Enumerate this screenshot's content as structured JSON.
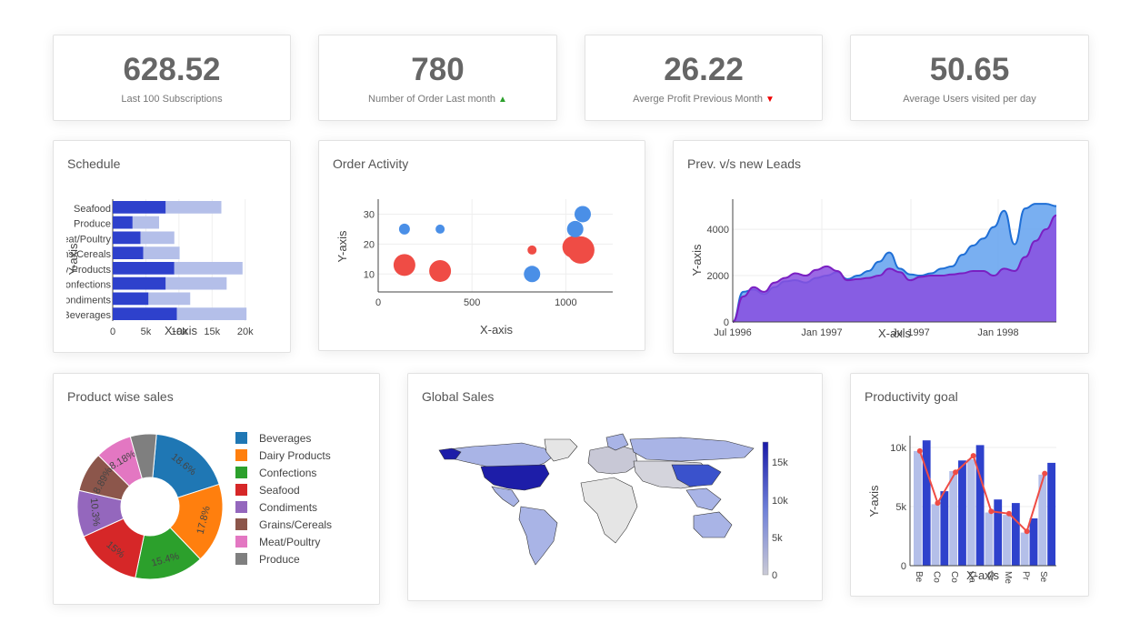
{
  "kpis": [
    {
      "value": "628.52",
      "label": "Last 100 Subscriptions",
      "trend": ""
    },
    {
      "value": "780",
      "label": "Number of Order Last month",
      "trend": "up"
    },
    {
      "value": "26.22",
      "label": "Averge Profit Previous Month",
      "trend": "down"
    },
    {
      "value": "50.65",
      "label": "Average Users visited per day",
      "trend": ""
    }
  ],
  "colors": {
    "up": "#2ca02c",
    "down": "#d62728",
    "bar_dark": "#2e41cc",
    "bar_light": "#b4bfe9",
    "red": "#ef4c45",
    "blue": "#4a8fe7",
    "area_blue": "#6aa6f0",
    "area_purple": "#8a4fe0"
  },
  "schedule": {
    "title": "Schedule",
    "chart_data": {
      "type": "bar",
      "orientation": "horizontal",
      "stacked": true,
      "categories": [
        "Seafood",
        "Produce",
        "Meat/Poultry",
        "Grains/Cereals",
        "Dairy Products",
        "Confections",
        "Condiments",
        "Beverages"
      ],
      "series": [
        {
          "values": [
            8000,
            3000,
            4200,
            4600,
            9300,
            8000,
            5400,
            9700
          ]
        },
        {
          "values": [
            8400,
            4000,
            5100,
            5500,
            10300,
            9200,
            6300,
            10500
          ]
        }
      ],
      "xlabel": "X-axis",
      "ylabel": "Y-axis",
      "xticks": [
        "0",
        "5k",
        "10k",
        "15k",
        "20k"
      ],
      "xlim": [
        0,
        21000
      ]
    }
  },
  "order_activity": {
    "title": "Order Activity",
    "chart_data": {
      "type": "scatter",
      "xlabel": "X-axis",
      "ylabel": "Y-axis",
      "xlim": [
        0,
        1250
      ],
      "ylim": [
        4,
        35
      ],
      "xticks": [
        "0",
        "500",
        "1000"
      ],
      "yticks": [
        "10",
        "20",
        "30"
      ],
      "points": [
        {
          "x": 140,
          "y": 25,
          "size": 6,
          "color": "blue"
        },
        {
          "x": 330,
          "y": 25,
          "size": 5,
          "color": "blue"
        },
        {
          "x": 140,
          "y": 13,
          "size": 12,
          "color": "red"
        },
        {
          "x": 330,
          "y": 11,
          "size": 12,
          "color": "red"
        },
        {
          "x": 820,
          "y": 18,
          "size": 5,
          "color": "red"
        },
        {
          "x": 820,
          "y": 10,
          "size": 9,
          "color": "blue"
        },
        {
          "x": 1040,
          "y": 19,
          "size": 12,
          "color": "red"
        },
        {
          "x": 1080,
          "y": 18,
          "size": 15,
          "color": "red"
        },
        {
          "x": 1050,
          "y": 25,
          "size": 9,
          "color": "blue"
        },
        {
          "x": 1090,
          "y": 30,
          "size": 9,
          "color": "blue"
        }
      ]
    }
  },
  "leads": {
    "title": "Prev. v/s new Leads",
    "chart_data": {
      "type": "area",
      "xlabel": "X-axis",
      "ylabel": "Y-axis",
      "ylim": [
        0,
        5300
      ],
      "xticks": [
        "Jul 1996",
        "Jan 1997",
        "Jul 1997",
        "Jan 1998"
      ],
      "yticks": [
        "0",
        "2000",
        "4000"
      ],
      "series": [
        {
          "values": [
            0,
            1300,
            1400,
            1200,
            1500,
            1750,
            1800,
            1700,
            1900,
            2000,
            2150,
            1850,
            2000,
            2200,
            2600,
            3000,
            2300,
            2050,
            2000,
            2100,
            2300,
            2400,
            2900,
            3300,
            3600,
            4100,
            4800,
            3350,
            4900,
            5100,
            5100,
            5000
          ]
        },
        {
          "values": [
            0,
            1100,
            1500,
            1300,
            1700,
            1900,
            2100,
            2000,
            2250,
            2400,
            2200,
            1800,
            1850,
            1900,
            2000,
            2300,
            2150,
            1800,
            1950,
            2000,
            2000,
            2050,
            2100,
            2200,
            2200,
            2000,
            2300,
            2200,
            2800,
            3500,
            4000,
            4600
          ]
        }
      ]
    }
  },
  "product_sales": {
    "title": "Product wise sales",
    "chart_data": {
      "type": "pie",
      "hole": true,
      "labels": [
        "Beverages",
        "Dairy Products",
        "Confections",
        "Seafood",
        "Condiments",
        "Grains/Cereals",
        "Meat/Poultry",
        "Produce"
      ],
      "values": [
        18.6,
        17.8,
        15.4,
        15,
        10.3,
        8.89,
        8.18,
        5.8
      ],
      "slice_labels": [
        "18.6%",
        "17.8%",
        "15.4%",
        "15%",
        "10.3%",
        "8.89%",
        "8.18%",
        ""
      ],
      "colors": [
        "#1f77b4",
        "#ff7f0e",
        "#2ca02c",
        "#d62728",
        "#9467bd",
        "#8c564b",
        "#e377c2",
        "#7f7f7f"
      ],
      "legend_position": "right"
    }
  },
  "global_sales": {
    "title": "Global Sales",
    "colorbar_ticks": [
      "15k",
      "10k",
      "5k",
      "0"
    ]
  },
  "productivity": {
    "title": "Productivity goal",
    "chart_data": {
      "type": "bar",
      "categories": [
        "Be",
        "Co",
        "Co",
        "Da",
        "Gr",
        "Me",
        "Pr",
        "Se"
      ],
      "series": [
        {
          "values": [
            9700,
            5200,
            8000,
            9000,
            4500,
            4300,
            2800,
            7700
          ]
        },
        {
          "values": [
            10600,
            6300,
            8900,
            10200,
            5600,
            5300,
            4000,
            8700
          ]
        },
        {
          "values": [
            9700,
            5300,
            7900,
            9300,
            4600,
            4400,
            2900,
            7800
          ]
        }
      ],
      "series_types": [
        "bar",
        "bar",
        "line"
      ],
      "xlabel": "X-axis",
      "ylabel": "Y-axis",
      "ylim": [
        0,
        11000
      ],
      "yticks": [
        "0",
        "5k",
        "10k"
      ]
    }
  }
}
